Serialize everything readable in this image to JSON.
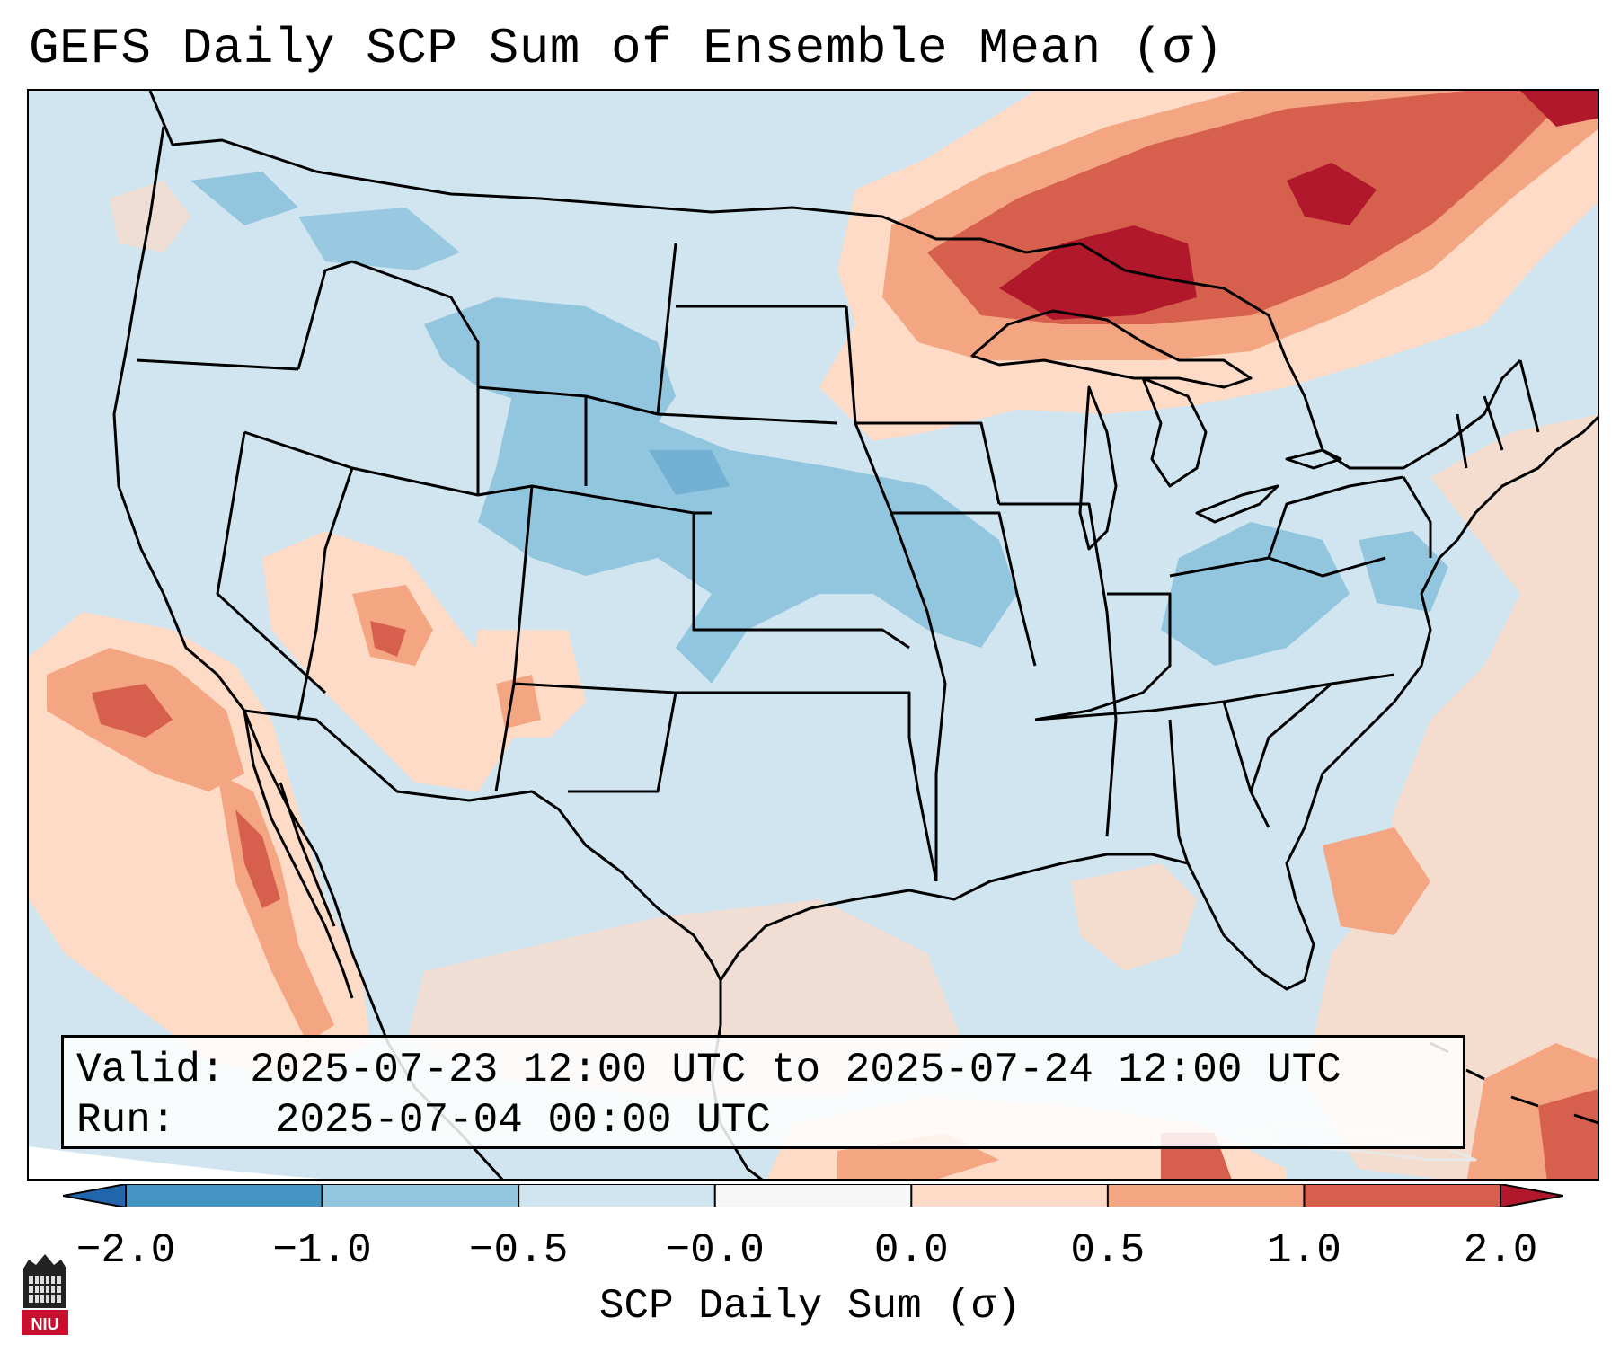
{
  "title": "GEFS Daily SCP Sum of Ensemble Mean (σ)",
  "info": {
    "valid_label": "Valid:",
    "valid_value": "2025-07-23 12:00 UTC to 2025-07-24 12:00 UTC",
    "run_label": "Run:",
    "run_value": "2025-07-04 00:00 UTC"
  },
  "colorbar": {
    "label": "SCP Daily Sum (σ)",
    "ticks": [
      "−2.0",
      "−1.0",
      "−0.5",
      "−0.0",
      "0.0",
      "0.5",
      "1.0",
      "2.0"
    ],
    "bins": [
      {
        "color": "#2166ac"
      },
      {
        "color": "#4393c3"
      },
      {
        "color": "#92c5de"
      },
      {
        "color": "#d1e5f0"
      },
      {
        "color": "#f7f7f7"
      },
      {
        "color": "#fddbc7"
      },
      {
        "color": "#f4a582"
      },
      {
        "color": "#d6604d"
      },
      {
        "color": "#b2182b"
      }
    ]
  },
  "logo": {
    "text": "NIU"
  }
}
